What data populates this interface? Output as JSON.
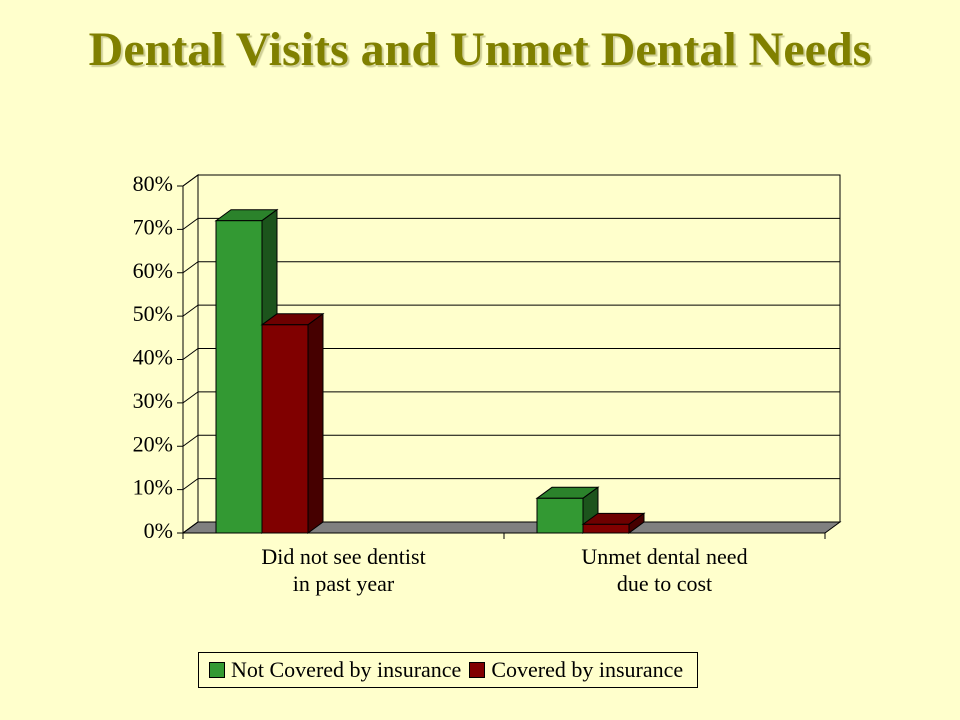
{
  "chart_data": {
    "type": "bar3d",
    "title": "Dental Visits and Unmet Dental Needs",
    "categories": [
      "Did not see dentist in past year",
      "Unmet dental need due to cost"
    ],
    "series": [
      {
        "name": "Not Covered by insurance",
        "color": "#339933",
        "values": [
          72,
          8
        ]
      },
      {
        "name": "Covered by insurance",
        "color": "#800000",
        "values": [
          48,
          2
        ]
      }
    ],
    "ylim": [
      0,
      80
    ],
    "yticks": [
      {
        "value": 0,
        "label": "0%"
      },
      {
        "value": 10,
        "label": "10%"
      },
      {
        "value": 20,
        "label": "20%"
      },
      {
        "value": 30,
        "label": "30%"
      },
      {
        "value": 40,
        "label": "40%"
      },
      {
        "value": 50,
        "label": "50%"
      },
      {
        "value": 60,
        "label": "60%"
      },
      {
        "value": 70,
        "label": "70%"
      },
      {
        "value": 80,
        "label": "80%"
      }
    ],
    "grid": true,
    "legend": "bottom"
  }
}
